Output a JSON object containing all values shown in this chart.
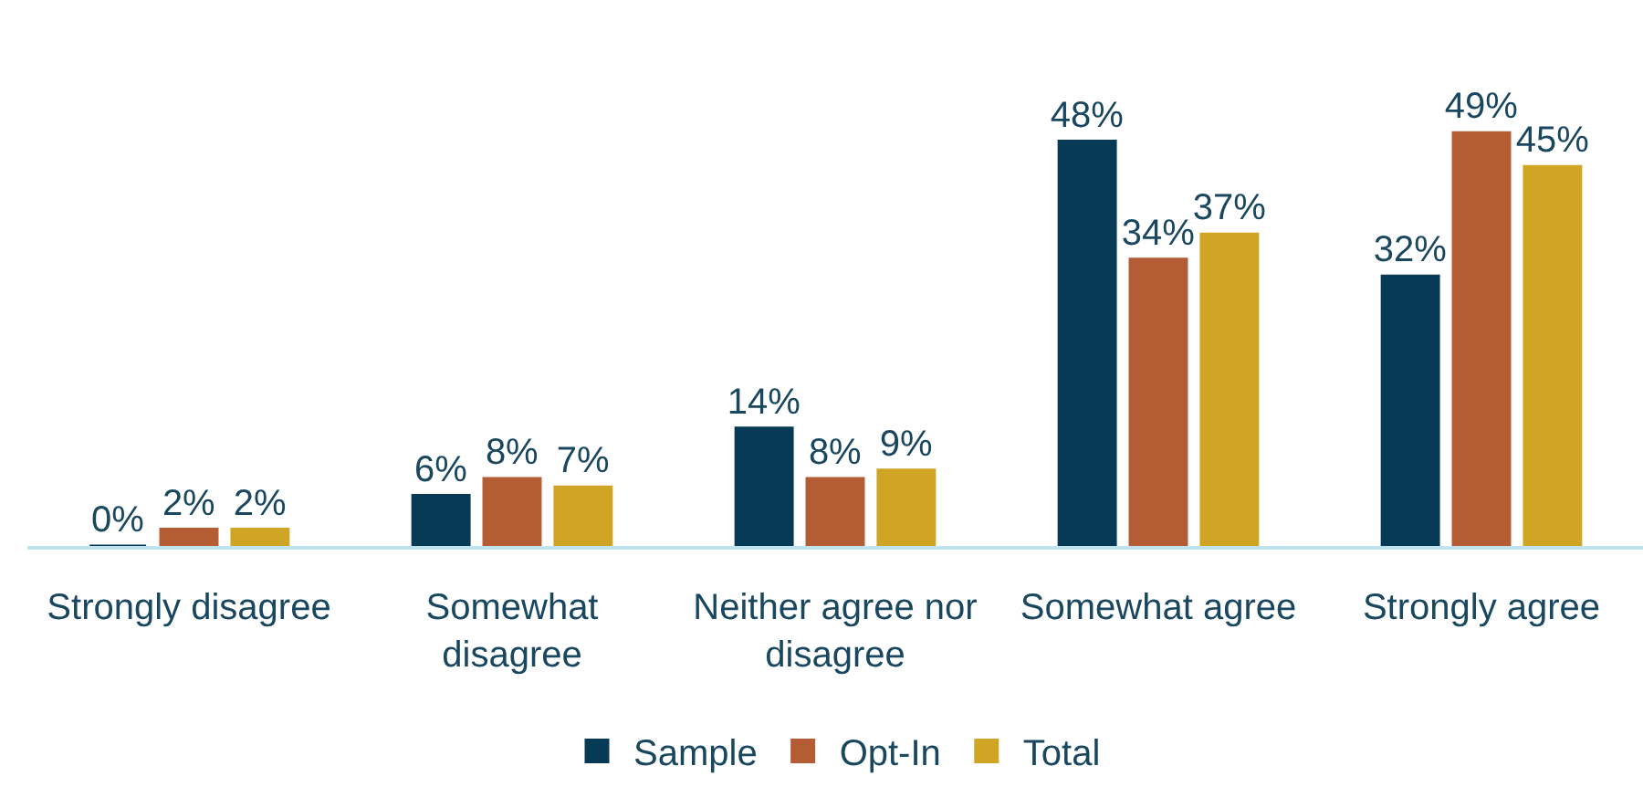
{
  "chart_data": {
    "type": "bar",
    "categories": [
      "Strongly disagree",
      "Somewhat disagree",
      "Neither agree nor disagree",
      "Somewhat agree",
      "Strongly agree"
    ],
    "series": [
      {
        "name": "Sample",
        "color": "#063a55",
        "values": [
          0,
          6,
          14,
          48,
          32
        ],
        "value_labels": [
          "0%",
          "6%",
          "14%",
          "48%",
          "32%"
        ]
      },
      {
        "name": "Opt-In",
        "color": "#b45c34",
        "values": [
          2,
          8,
          8,
          34,
          49
        ],
        "value_labels": [
          "2%",
          "8%",
          "8%",
          "34%",
          "49%"
        ]
      },
      {
        "name": "Total",
        "color": "#d0a424",
        "values": [
          2,
          7,
          9,
          37,
          45
        ],
        "value_labels": [
          "2%",
          "7%",
          "9%",
          "37%",
          "45%"
        ]
      }
    ],
    "legend": "bottom",
    "grid": false,
    "tick_labels": "x"
  }
}
